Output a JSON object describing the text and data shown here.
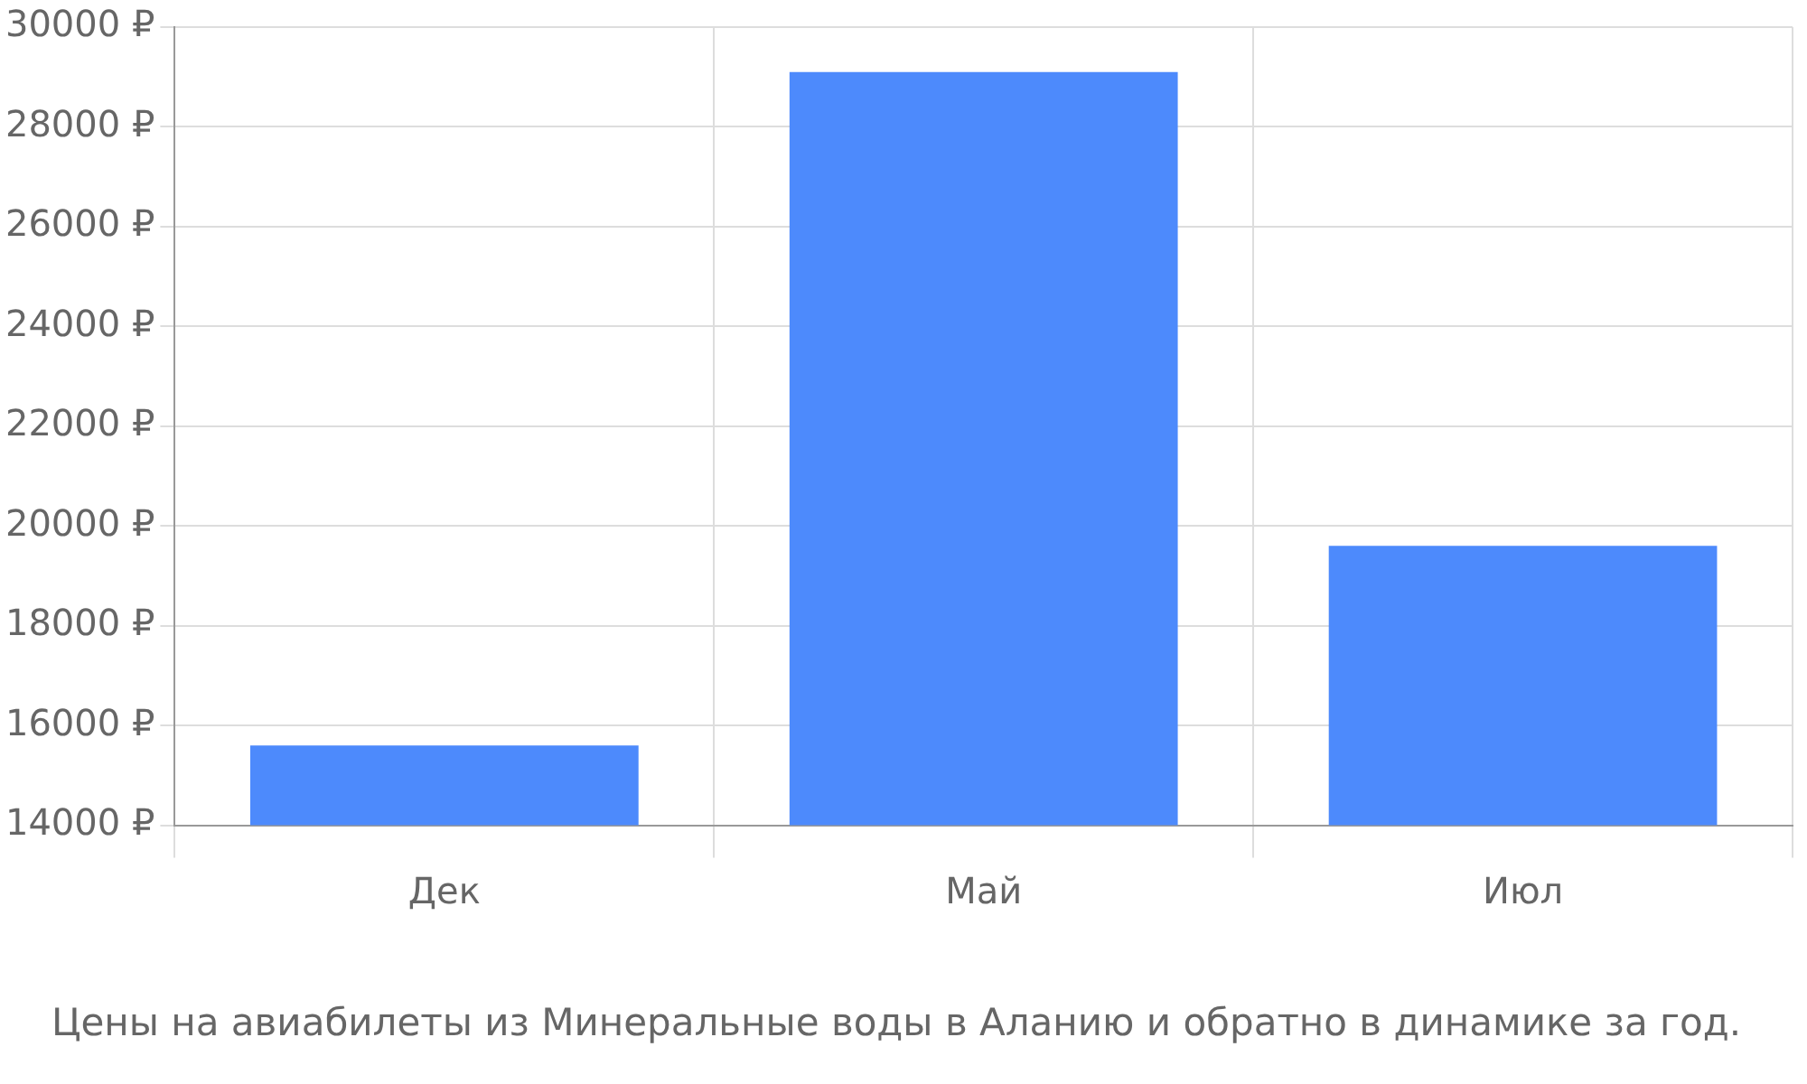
{
  "chart_data": {
    "type": "bar",
    "title": "Цены на авиабилеты из Минеральные воды в Аланию и обратно в динамике за год.",
    "categories": [
      "Дек",
      "Май",
      "Июл"
    ],
    "values": [
      15600,
      29100,
      19600
    ],
    "color": "#4d8afc",
    "ylim": [
      14000,
      30000
    ],
    "yticks": [
      {
        "value": 14000,
        "label": "14000 ₽"
      },
      {
        "value": 16000,
        "label": "16000 ₽"
      },
      {
        "value": 18000,
        "label": "18000 ₽"
      },
      {
        "value": 20000,
        "label": "20000 ₽"
      },
      {
        "value": 22000,
        "label": "22000 ₽"
      },
      {
        "value": 24000,
        "label": "24000 ₽"
      },
      {
        "value": 26000,
        "label": "26000 ₽"
      },
      {
        "value": 28000,
        "label": "28000 ₽"
      },
      {
        "value": 30000,
        "label": "30000 ₽"
      }
    ],
    "grid": true,
    "legend": false
  }
}
